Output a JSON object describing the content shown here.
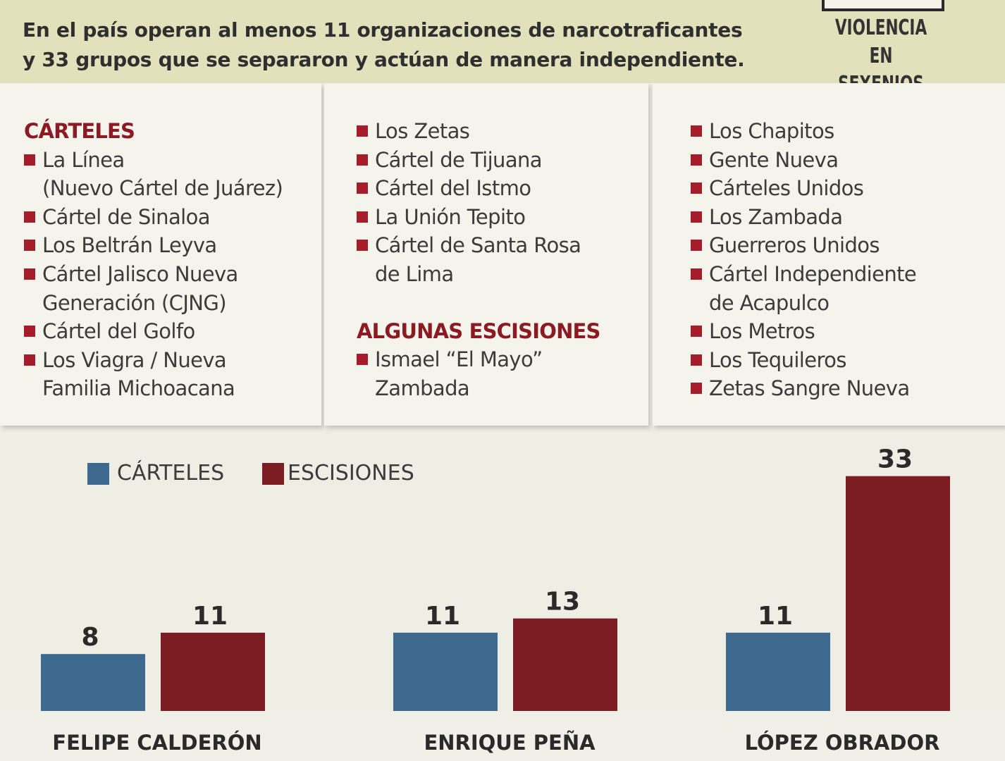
{
  "header": {
    "headline_line1": "En el país operan al menos 11 organizaciones de narcotraficantes",
    "headline_line2": "y 33 grupos que se separaron y actúan de manera independiente.",
    "badge_line1": "VIOLENCIA",
    "badge_line2": "EN SEXENIOS"
  },
  "colors": {
    "accent_red": "#a51c2a",
    "heading_red": "#8b1a22",
    "carteles_blue": "#3e6a8f",
    "escisiones_red": "#7c1c23",
    "header_bg": "#e3e1bb"
  },
  "lists": {
    "col1": {
      "heading": "CÁRTELES",
      "items": [
        [
          "La Línea",
          "(Nuevo Cártel de Juárez)"
        ],
        [
          "Cártel de Sinaloa"
        ],
        [
          "Los Beltrán Leyva"
        ],
        [
          "Cártel Jalisco Nueva",
          "Generación (CJNG)"
        ],
        [
          "Cártel del Golfo"
        ],
        [
          "Los Viagra / Nueva",
          "Familia Michoacana"
        ]
      ]
    },
    "col2": {
      "items": [
        [
          "Los Zetas"
        ],
        [
          "Cártel de Tijuana"
        ],
        [
          "Cártel del Istmo"
        ],
        [
          "La Unión Tepito"
        ],
        [
          "Cártel de Santa Rosa",
          "de Lima"
        ]
      ],
      "heading2": "ALGUNAS ESCISIONES",
      "items2": [
        [
          "Ismael “El Mayo”",
          "Zambada"
        ]
      ]
    },
    "col3": {
      "items": [
        [
          "Los Chapitos"
        ],
        [
          "Gente Nueva"
        ],
        [
          "Cárteles Unidos"
        ],
        [
          "Los Zambada"
        ],
        [
          "Guerreros Unidos"
        ],
        [
          "Cártel Independiente",
          "de Acapulco"
        ],
        [
          "Los Metros"
        ],
        [
          "Los Tequileros"
        ],
        [
          "Zetas Sangre Nueva"
        ]
      ]
    }
  },
  "chart_data": {
    "type": "bar",
    "categories": [
      "FELIPE CALDERÓN",
      "ENRIQUE PEÑA",
      "LÓPEZ OBRADOR"
    ],
    "series": [
      {
        "name": "CÁRTELES",
        "values": [
          8,
          11,
          11
        ],
        "color": "#3e6a8f"
      },
      {
        "name": "ESCISIONES",
        "values": [
          11,
          13,
          33
        ],
        "color": "#7c1c23"
      }
    ],
    "legend": "top-left",
    "grid": false,
    "ylim": [
      0,
      33
    ]
  }
}
